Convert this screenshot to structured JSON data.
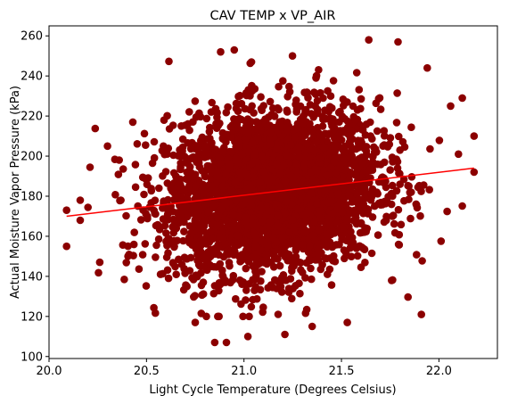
{
  "chart_data": {
    "type": "scatter",
    "title": "CAV TEMP x VP_AIR",
    "xlabel": "Light Cycle Temperature (Degrees Celsius)",
    "ylabel": "Actual Moisture Vapor Pressure (kPa)",
    "xlim": [
      20.0,
      22.3
    ],
    "ylim": [
      99,
      265
    ],
    "xticks": [
      20.0,
      20.5,
      21.0,
      21.5,
      22.0
    ],
    "xtick_labels": [
      "20.0",
      "20.5",
      "21.0",
      "21.5",
      "22.0"
    ],
    "yticks": [
      100,
      120,
      140,
      160,
      180,
      200,
      220,
      240,
      260
    ],
    "ytick_labels": [
      "100",
      "120",
      "140",
      "160",
      "180",
      "200",
      "220",
      "240",
      "260"
    ],
    "grid": false,
    "series": [
      {
        "kind": "points",
        "color": "#8b0000",
        "x_mean": 21.15,
        "x_std": 0.27,
        "y_mean": 182,
        "y_std": 20,
        "approx_count": 9000,
        "notable_points": [
          {
            "x": 20.09,
            "y": 173
          },
          {
            "x": 20.09,
            "y": 155
          },
          {
            "x": 20.16,
            "y": 178
          },
          {
            "x": 20.16,
            "y": 168
          },
          {
            "x": 20.26,
            "y": 147
          },
          {
            "x": 20.3,
            "y": 205
          },
          {
            "x": 20.36,
            "y": 198
          },
          {
            "x": 20.43,
            "y": 217
          },
          {
            "x": 20.75,
            "y": 117
          },
          {
            "x": 20.85,
            "y": 107
          },
          {
            "x": 20.91,
            "y": 107
          },
          {
            "x": 20.88,
            "y": 252
          },
          {
            "x": 20.95,
            "y": 253
          },
          {
            "x": 21.02,
            "y": 110
          },
          {
            "x": 21.21,
            "y": 111
          },
          {
            "x": 21.35,
            "y": 115
          },
          {
            "x": 21.53,
            "y": 117
          },
          {
            "x": 21.64,
            "y": 258
          },
          {
            "x": 21.79,
            "y": 257
          },
          {
            "x": 21.91,
            "y": 121
          },
          {
            "x": 21.94,
            "y": 244
          },
          {
            "x": 22.06,
            "y": 225
          },
          {
            "x": 22.1,
            "y": 201
          },
          {
            "x": 22.12,
            "y": 229
          },
          {
            "x": 22.18,
            "y": 210
          },
          {
            "x": 22.18,
            "y": 192
          }
        ]
      },
      {
        "kind": "regression_line",
        "color": "#ff0000",
        "x": [
          20.09,
          22.18
        ],
        "y": [
          170,
          194
        ]
      }
    ]
  }
}
